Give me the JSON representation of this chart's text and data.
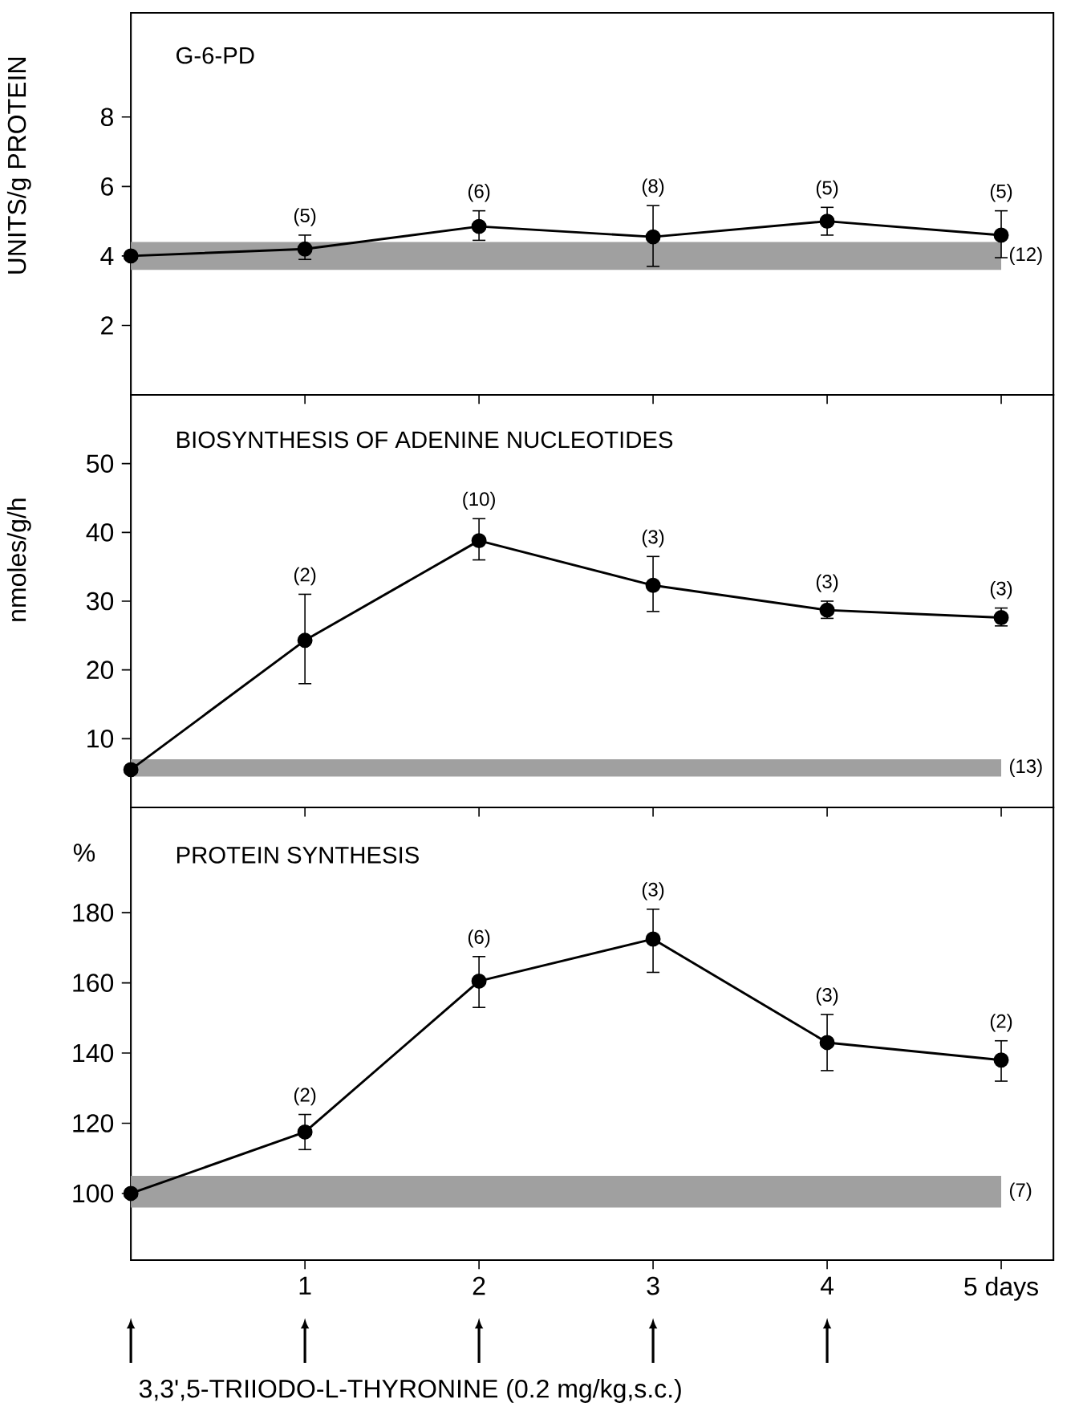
{
  "chart_data": [
    {
      "type": "line",
      "title": "G-6-PD",
      "ylabel": "UNITS/g PROTEIN",
      "xlim": [
        0,
        5.3
      ],
      "ylim": [
        0,
        11
      ],
      "yticks": [
        2,
        4,
        6,
        8
      ],
      "xticks": [
        {
          "value": 1,
          "label": null
        },
        {
          "value": 2,
          "label": null
        },
        {
          "value": 3,
          "label": null
        },
        {
          "value": 4,
          "label": null
        },
        {
          "value": 5,
          "label": null
        }
      ],
      "tick_labels": "y",
      "marker": "circle",
      "line_style": "solid",
      "series": [
        {
          "color": "#000000",
          "x": [
            0,
            1,
            2,
            3,
            4,
            5
          ],
          "values": [
            4.0,
            4.2,
            4.85,
            4.55,
            5.0,
            4.6
          ],
          "errors": [
            null,
            [
              3.9,
              4.6
            ],
            [
              4.45,
              5.3
            ],
            [
              3.7,
              5.45
            ],
            [
              4.6,
              5.4
            ],
            [
              3.95,
              5.3
            ]
          ]
        }
      ],
      "bands": [
        {
          "axis": "y",
          "from": 3.6,
          "to": 4.4,
          "label": "(12)",
          "color": "#a0a0a0"
        }
      ],
      "annotations": [
        {
          "text": "(5)",
          "x": 1,
          "y": 4.2
        },
        {
          "text": "(6)",
          "x": 2,
          "y": 4.85
        },
        {
          "text": "(8)",
          "x": 3,
          "y": 4.55
        },
        {
          "text": "(5)",
          "x": 4,
          "y": 5.0
        },
        {
          "text": "(5)",
          "x": 5,
          "y": 4.6
        }
      ]
    },
    {
      "type": "line",
      "title": "BIOSYNTHESIS OF ADENINE NUCLEOTIDES",
      "ylabel": "nmoles/g/h",
      "xlim": [
        0,
        5.3
      ],
      "ylim": [
        0,
        60
      ],
      "yticks": [
        10,
        20,
        30,
        40,
        50
      ],
      "xticks": [
        {
          "value": 1,
          "label": null
        },
        {
          "value": 2,
          "label": null
        },
        {
          "value": 3,
          "label": null
        },
        {
          "value": 4,
          "label": null
        },
        {
          "value": 5,
          "label": null
        }
      ],
      "tick_labels": "y",
      "marker": "circle",
      "line_style": "solid",
      "series": [
        {
          "color": "#000000",
          "x": [
            0,
            1,
            2,
            3,
            4,
            5
          ],
          "values": [
            5.5,
            24.3,
            38.8,
            32.3,
            28.7,
            27.6
          ],
          "errors": [
            null,
            [
              18,
              31
            ],
            [
              36,
              42
            ],
            [
              28.5,
              36.5
            ],
            [
              27.5,
              30
            ],
            [
              26.4,
              29
            ]
          ]
        }
      ],
      "bands": [
        {
          "axis": "y",
          "from": 4.5,
          "to": 7,
          "label": "(13)",
          "color": "#a0a0a0"
        }
      ],
      "annotations": [
        {
          "text": "(2)",
          "x": 1,
          "y": 24.3
        },
        {
          "text": "(10)",
          "x": 2,
          "y": 38.8
        },
        {
          "text": "(3)",
          "x": 3,
          "y": 32.3
        },
        {
          "text": "(3)",
          "x": 4,
          "y": 28.7
        },
        {
          "text": "(3)",
          "x": 5,
          "y": 27.6
        }
      ]
    },
    {
      "type": "line",
      "title": "PROTEIN SYNTHESIS",
      "ylabel": "%",
      "xlim": [
        0,
        5.3
      ],
      "ylim": [
        81,
        210
      ],
      "yticks": [
        100,
        120,
        140,
        160,
        180
      ],
      "xticks": [
        1,
        2,
        3,
        4,
        {
          "value": 5,
          "label": "5 days"
        }
      ],
      "marker": "circle",
      "line_style": "solid",
      "series": [
        {
          "color": "#000000",
          "x": [
            0,
            1,
            2,
            3,
            4,
            5
          ],
          "values": [
            100,
            117.5,
            160.5,
            172.5,
            143,
            138
          ],
          "errors": [
            null,
            [
              112.5,
              122.5
            ],
            [
              153,
              167.5
            ],
            [
              163,
              181
            ],
            [
              135,
              151
            ],
            [
              132,
              143.5
            ]
          ]
        }
      ],
      "bands": [
        {
          "axis": "y",
          "from": 96,
          "to": 105,
          "label": "(7)",
          "color": "#a0a0a0"
        }
      ],
      "annotations": [
        {
          "text": "(2)",
          "x": 1,
          "y": 117.5
        },
        {
          "text": "(6)",
          "x": 2,
          "y": 160.5
        },
        {
          "text": "(3)",
          "x": 3,
          "y": 172.5
        },
        {
          "text": "(3)",
          "x": 4,
          "y": 143
        },
        {
          "text": "(2)",
          "x": 5,
          "y": 138
        },
        "3,3',5-TRIIODO-L-THYRONINE (0.2 mg/kg,s.c.)"
      ]
    }
  ]
}
